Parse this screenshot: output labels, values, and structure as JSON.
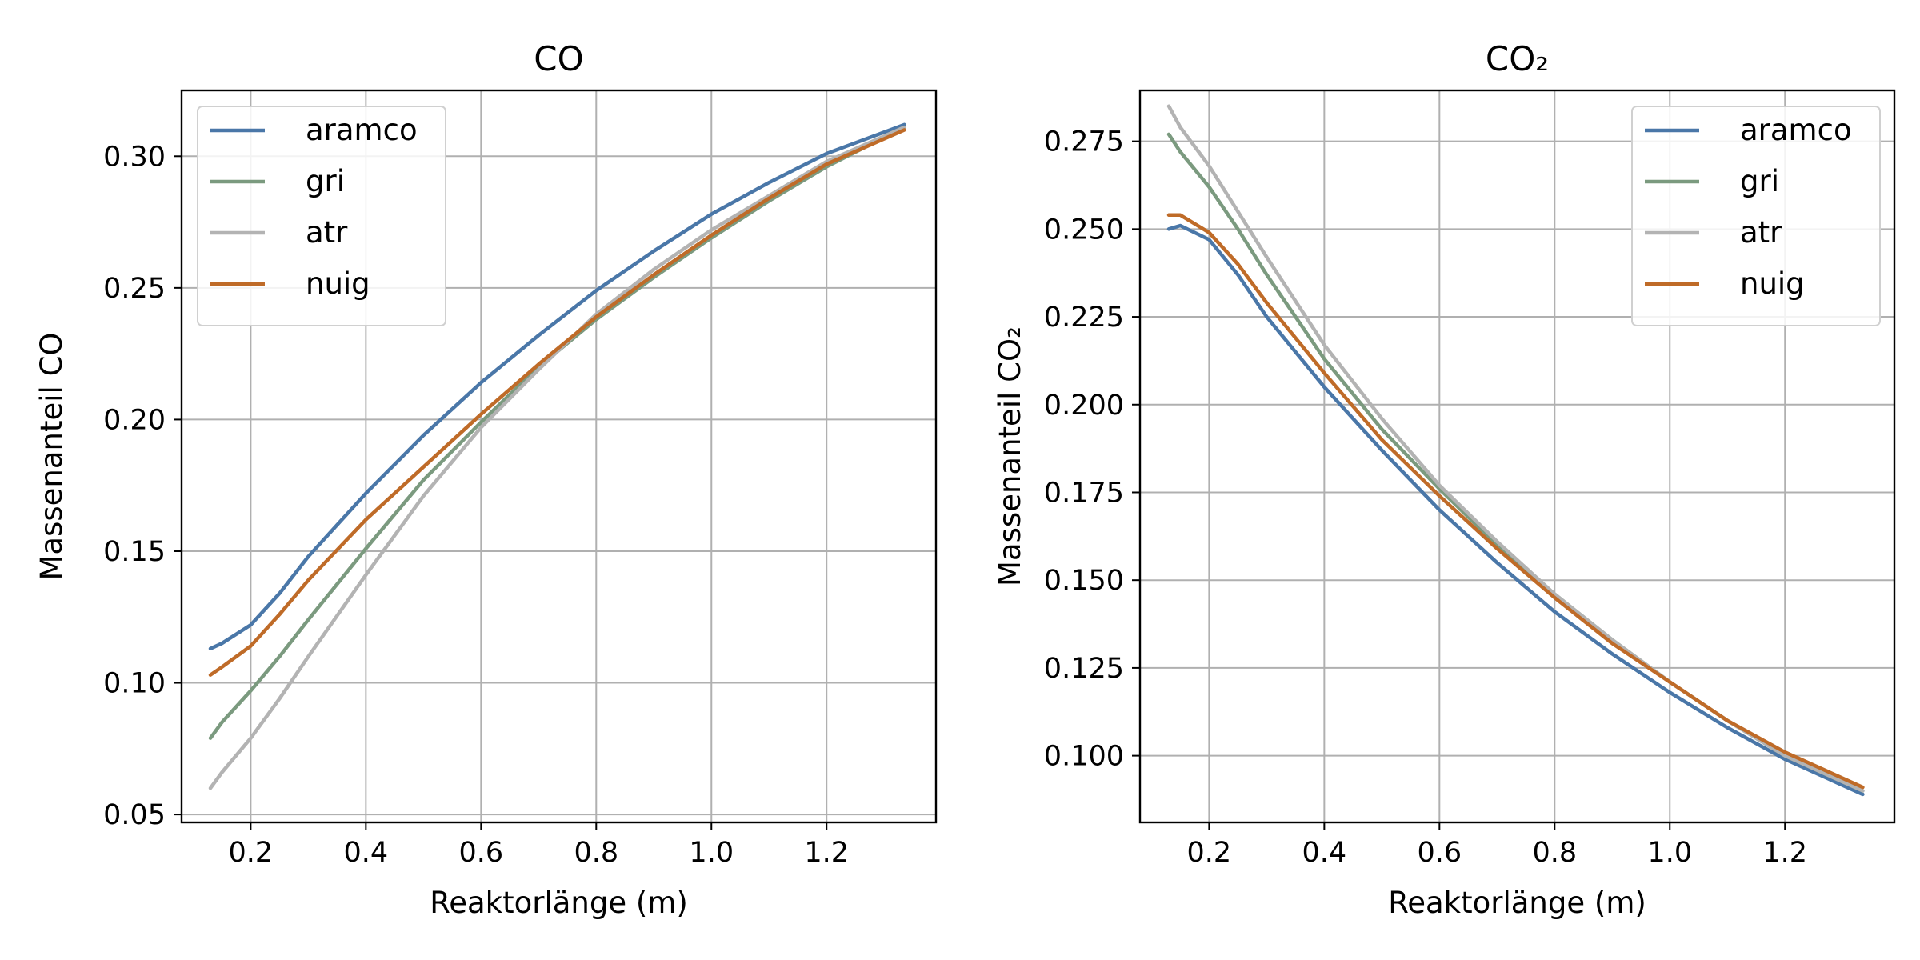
{
  "chart_data": [
    {
      "type": "line",
      "title": "CO",
      "xlabel": "Reaktorlänge (m)",
      "ylabel": "Massenanteil CO",
      "xlim": [
        0.08,
        1.39
      ],
      "ylim": [
        0.047,
        0.325
      ],
      "xticks": [
        "0.2",
        "0.4",
        "0.6",
        "0.8",
        "1.0",
        "1.2"
      ],
      "yticks": [
        "0.05",
        "0.10",
        "0.15",
        "0.20",
        "0.25",
        "0.30"
      ],
      "grid": true,
      "legend_position": "top-left",
      "x": [
        0.13,
        0.15,
        0.2,
        0.25,
        0.3,
        0.4,
        0.5,
        0.6,
        0.7,
        0.8,
        0.9,
        1.0,
        1.1,
        1.2,
        1.335
      ],
      "series": [
        {
          "name": "aramco",
          "color": "#4a77a8",
          "values": [
            0.113,
            0.115,
            0.122,
            0.134,
            0.148,
            0.172,
            0.194,
            0.214,
            0.232,
            0.249,
            0.264,
            0.278,
            0.29,
            0.301,
            0.312
          ]
        },
        {
          "name": "gri",
          "color": "#7b9a7f",
          "values": [
            0.079,
            0.085,
            0.097,
            0.11,
            0.124,
            0.151,
            0.177,
            0.199,
            0.22,
            0.238,
            0.254,
            0.269,
            0.283,
            0.296,
            0.311
          ]
        },
        {
          "name": "atr",
          "color": "#b3b3b3",
          "values": [
            0.06,
            0.066,
            0.079,
            0.094,
            0.11,
            0.141,
            0.171,
            0.197,
            0.219,
            0.24,
            0.257,
            0.272,
            0.285,
            0.298,
            0.311
          ]
        },
        {
          "name": "nuig",
          "color": "#bf6b28",
          "values": [
            0.103,
            0.106,
            0.114,
            0.126,
            0.139,
            0.162,
            0.182,
            0.202,
            0.221,
            0.239,
            0.255,
            0.27,
            0.284,
            0.297,
            0.31
          ]
        }
      ]
    },
    {
      "type": "line",
      "title": "CO₂",
      "xlabel": "Reaktorlänge (m)",
      "ylabel": "Massenanteil CO₂",
      "xlim": [
        0.08,
        1.39
      ],
      "ylim": [
        0.081,
        0.2895
      ],
      "xticks": [
        "0.2",
        "0.4",
        "0.6",
        "0.8",
        "1.0",
        "1.2"
      ],
      "yticks": [
        "0.100",
        "0.125",
        "0.150",
        "0.175",
        "0.200",
        "0.225",
        "0.250",
        "0.275"
      ],
      "grid": true,
      "legend_position": "top-right",
      "x": [
        0.13,
        0.15,
        0.2,
        0.25,
        0.3,
        0.4,
        0.5,
        0.6,
        0.7,
        0.8,
        0.9,
        1.0,
        1.1,
        1.2,
        1.335
      ],
      "series": [
        {
          "name": "aramco",
          "color": "#4a77a8",
          "values": [
            0.25,
            0.251,
            0.247,
            0.237,
            0.225,
            0.205,
            0.187,
            0.17,
            0.155,
            0.141,
            0.129,
            0.118,
            0.108,
            0.099,
            0.089
          ]
        },
        {
          "name": "gri",
          "color": "#7b9a7f",
          "values": [
            0.277,
            0.272,
            0.262,
            0.25,
            0.237,
            0.213,
            0.193,
            0.176,
            0.16,
            0.146,
            0.133,
            0.121,
            0.11,
            0.1,
            0.09
          ]
        },
        {
          "name": "atr",
          "color": "#b3b3b3",
          "values": [
            0.285,
            0.279,
            0.268,
            0.255,
            0.242,
            0.217,
            0.196,
            0.177,
            0.161,
            0.146,
            0.133,
            0.121,
            0.11,
            0.1,
            0.09
          ]
        },
        {
          "name": "nuig",
          "color": "#bf6b28",
          "values": [
            0.254,
            0.254,
            0.249,
            0.24,
            0.229,
            0.209,
            0.19,
            0.174,
            0.159,
            0.145,
            0.132,
            0.121,
            0.11,
            0.101,
            0.091
          ]
        }
      ]
    }
  ]
}
